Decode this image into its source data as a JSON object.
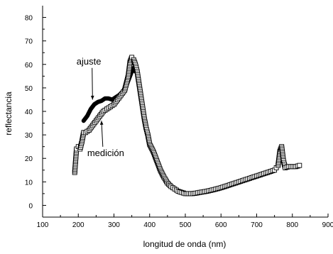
{
  "chart_data": {
    "type": "scatter",
    "xlabel": "longitud de onda (nm)",
    "ylabel": "reflectancia",
    "xlim": [
      100,
      900
    ],
    "ylim": [
      -5,
      85
    ],
    "xticks": [
      "100",
      "200",
      "300",
      "400",
      "500",
      "600",
      "700",
      "800",
      "900"
    ],
    "yticks": [
      "0",
      "10",
      "20",
      "30",
      "40",
      "50",
      "60",
      "70",
      "80"
    ],
    "grid": false,
    "legend": "none",
    "annotations": [
      {
        "label": "ajuste",
        "x": 195,
        "y": 60,
        "arrow_to": [
          240,
          45
        ]
      },
      {
        "label": "medición",
        "x": 225,
        "y": 21,
        "arrow_to": [
          265,
          36
        ]
      }
    ],
    "series": [
      {
        "name": "medición",
        "style": "open-square",
        "color": "#000000",
        "x": [
          190,
          195,
          200,
          205,
          210,
          215,
          220,
          230,
          240,
          250,
          260,
          270,
          280,
          290,
          300,
          310,
          320,
          330,
          340,
          345,
          350,
          355,
          360,
          365,
          370,
          375,
          380,
          385,
          390,
          395,
          400,
          410,
          420,
          430,
          440,
          450,
          460,
          470,
          480,
          490,
          500,
          510,
          520,
          530,
          540,
          560,
          580,
          600,
          620,
          640,
          660,
          680,
          700,
          720,
          740,
          750,
          755,
          760,
          765,
          770,
          775,
          780,
          790,
          800,
          810,
          820
        ],
        "y": [
          14,
          24,
          25,
          24,
          27,
          31,
          31,
          32,
          34,
          36,
          38,
          40,
          41,
          42,
          43,
          45,
          47,
          49,
          55,
          61,
          63,
          62,
          60,
          57,
          52,
          47,
          42,
          37,
          33,
          30,
          26,
          23,
          19,
          15,
          12,
          9.5,
          8,
          7,
          6,
          5.5,
          5,
          5,
          5,
          5.2,
          5.5,
          6,
          6.7,
          7.5,
          8.5,
          9.5,
          10.5,
          11.5,
          12.5,
          13.5,
          14.5,
          15,
          16,
          17,
          23,
          25,
          19,
          16,
          16.5,
          16.5,
          16.5,
          17
        ]
      },
      {
        "name": "ajuste",
        "style": "line",
        "color": "#000000",
        "x": [
          215,
          225,
          235,
          245,
          255,
          265,
          275,
          285,
          295,
          305,
          315,
          325,
          335,
          345,
          350,
          355,
          360
        ],
        "y": [
          36,
          38,
          41,
          43,
          44,
          44.5,
          45.5,
          45.5,
          45,
          46,
          47,
          48.5,
          51,
          55,
          57,
          58.5,
          57
        ]
      }
    ]
  }
}
